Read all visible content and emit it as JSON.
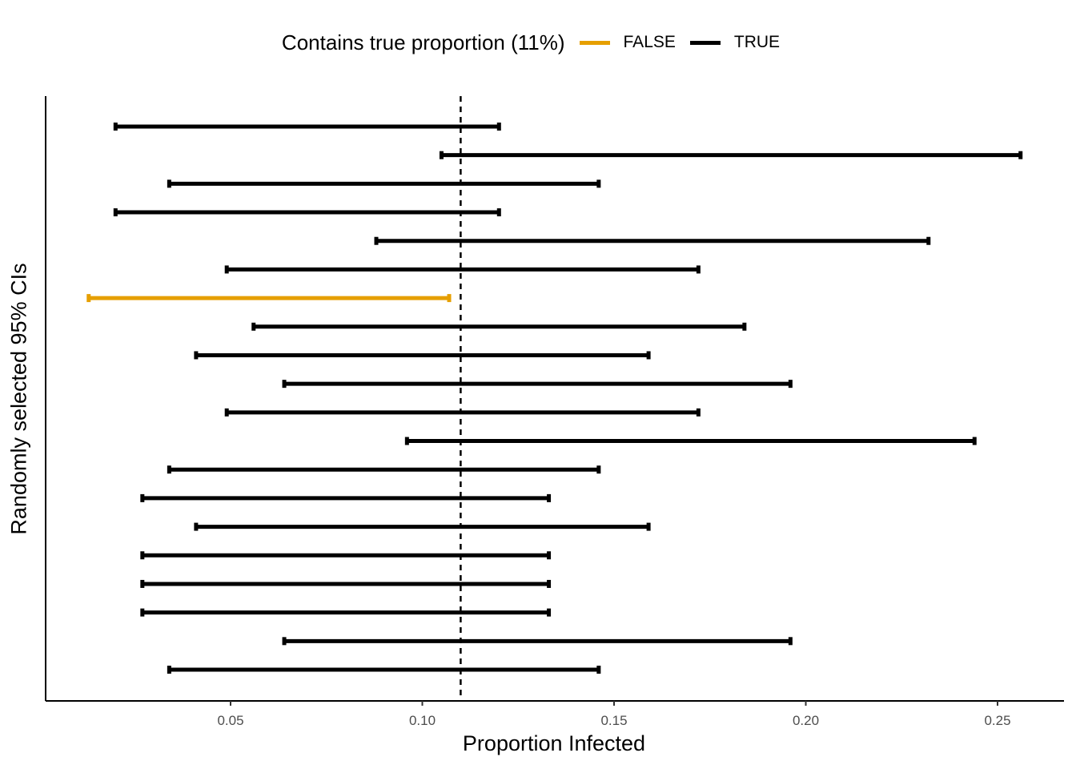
{
  "chart_data": {
    "type": "errorbar",
    "title": "",
    "xlabel": "Proportion Infected",
    "ylabel": "Randomly selected 95% CIs",
    "xlim": [
      0.0,
      0.265
    ],
    "xticks": [
      "0.05",
      "0.10",
      "0.15",
      "0.20",
      "0.25"
    ],
    "true_proportion": 0.11,
    "legend": {
      "title": "Contains true proportion (11%)",
      "position": "top",
      "entries": [
        {
          "label": "FALSE",
          "color": "#E69F00"
        },
        {
          "label": "TRUE",
          "color": "#000000"
        }
      ]
    },
    "intervals": [
      {
        "lower": 0.02,
        "upper": 0.12,
        "contains": true
      },
      {
        "lower": 0.105,
        "upper": 0.256,
        "contains": true
      },
      {
        "lower": 0.034,
        "upper": 0.146,
        "contains": true
      },
      {
        "lower": 0.02,
        "upper": 0.12,
        "contains": true
      },
      {
        "lower": 0.088,
        "upper": 0.232,
        "contains": true
      },
      {
        "lower": 0.049,
        "upper": 0.172,
        "contains": true
      },
      {
        "lower": 0.013,
        "upper": 0.107,
        "contains": false
      },
      {
        "lower": 0.056,
        "upper": 0.184,
        "contains": true
      },
      {
        "lower": 0.041,
        "upper": 0.159,
        "contains": true
      },
      {
        "lower": 0.064,
        "upper": 0.196,
        "contains": true
      },
      {
        "lower": 0.049,
        "upper": 0.172,
        "contains": true
      },
      {
        "lower": 0.096,
        "upper": 0.244,
        "contains": true
      },
      {
        "lower": 0.034,
        "upper": 0.146,
        "contains": true
      },
      {
        "lower": 0.027,
        "upper": 0.133,
        "contains": true
      },
      {
        "lower": 0.041,
        "upper": 0.159,
        "contains": true
      },
      {
        "lower": 0.027,
        "upper": 0.133,
        "contains": true
      },
      {
        "lower": 0.027,
        "upper": 0.133,
        "contains": true
      },
      {
        "lower": 0.027,
        "upper": 0.133,
        "contains": true
      },
      {
        "lower": 0.064,
        "upper": 0.196,
        "contains": true
      },
      {
        "lower": 0.034,
        "upper": 0.146,
        "contains": true
      }
    ]
  }
}
